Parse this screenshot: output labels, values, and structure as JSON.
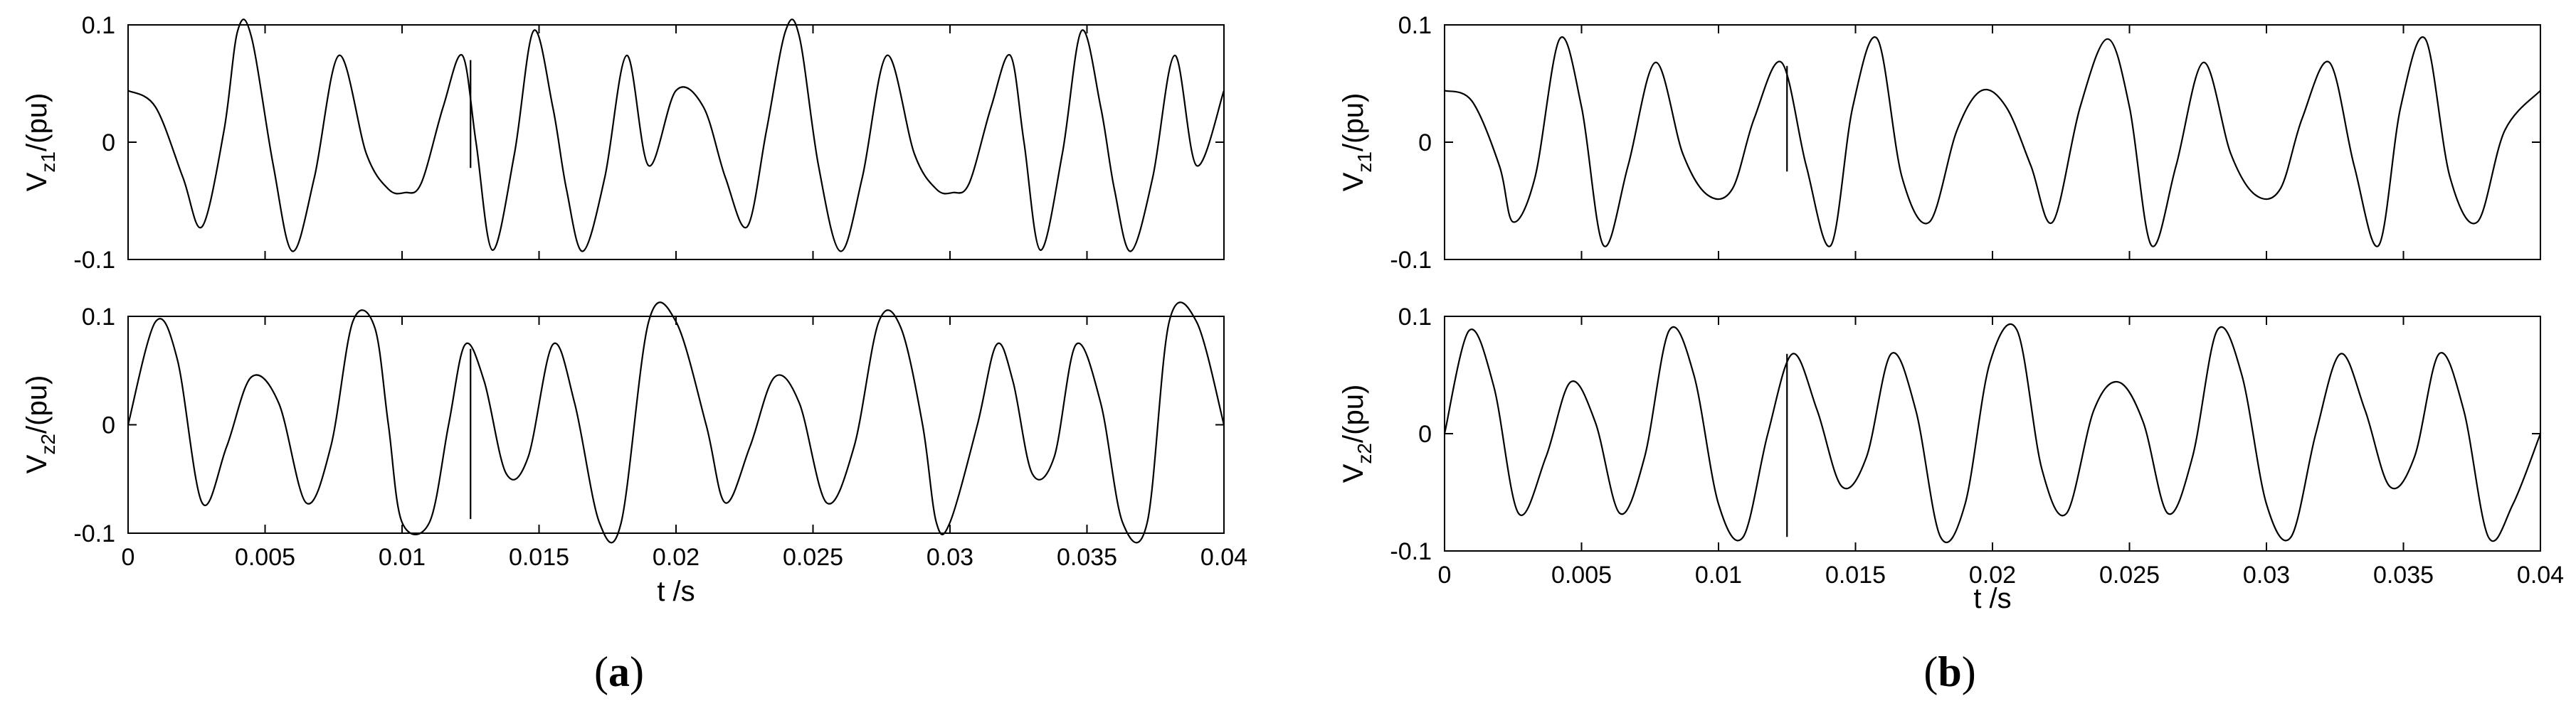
{
  "figure": {
    "panels": [
      {
        "label_open": "(",
        "label_letter": "a",
        "label_close": ")"
      },
      {
        "label_open": "(",
        "label_letter": "b",
        "label_close": ")"
      }
    ]
  },
  "chart_data": [
    {
      "type": "line",
      "panel": "a",
      "xlabel": "",
      "ylabel": {
        "main": "V",
        "sub": "z1",
        "unit": "/(pu)"
      },
      "xlim": [
        0,
        0.04
      ],
      "ylim": [
        -0.1,
        0.1
      ],
      "yticks": [
        "0.1",
        "0",
        "-0.1"
      ],
      "xticks": [],
      "series": [
        {
          "name": "V_z1",
          "x": [
            0.0,
            0.001,
            0.002,
            0.0027,
            0.0035,
            0.004,
            0.0045,
            0.0053,
            0.006,
            0.0068,
            0.0077,
            0.0087,
            0.0095,
            0.0101,
            0.0107,
            0.0115,
            0.0122,
            0.0127,
            0.0133,
            0.0141,
            0.0148,
            0.0155,
            0.016,
            0.0166,
            0.0174,
            0.0182,
            0.019,
            0.02,
            0.021,
            0.0218,
            0.0226,
            0.0233,
            0.024,
            0.0245,
            0.0252,
            0.026,
            0.0268,
            0.0277,
            0.0287,
            0.0295,
            0.0301,
            0.0307,
            0.0315,
            0.0322,
            0.0327,
            0.0333,
            0.0341,
            0.0348,
            0.0355,
            0.036,
            0.0366,
            0.0374,
            0.0382,
            0.039,
            0.04
          ],
          "y": [
            0.044,
            0.03,
            -0.03,
            -0.072,
            0.01,
            0.095,
            0.09,
            -0.02,
            -0.093,
            -0.03,
            0.074,
            -0.01,
            -0.04,
            -0.043,
            -0.035,
            0.03,
            0.074,
            0.0,
            -0.092,
            -0.01,
            0.095,
            0.03,
            -0.04,
            -0.093,
            -0.03,
            0.074,
            -0.02,
            0.044,
            0.03,
            -0.03,
            -0.072,
            0.01,
            0.095,
            0.09,
            -0.02,
            -0.093,
            -0.03,
            0.074,
            -0.01,
            -0.04,
            -0.043,
            -0.035,
            0.03,
            0.074,
            0.0,
            -0.092,
            -0.01,
            0.095,
            0.03,
            -0.04,
            -0.093,
            -0.03,
            0.074,
            -0.02,
            0.044
          ]
        }
      ],
      "marker": {
        "x": 0.0125,
        "y1": -0.022,
        "y2": 0.07
      }
    },
    {
      "type": "line",
      "panel": "a",
      "xlabel": "t /s",
      "ylabel": {
        "main": "V",
        "sub": "z2",
        "unit": "/(pu)"
      },
      "xlim": [
        0,
        0.04
      ],
      "ylim": [
        -0.1,
        0.1
      ],
      "yticks": [
        "0.1",
        "0",
        "-0.1"
      ],
      "xticks": [
        "0",
        "0.005",
        "0.01",
        "0.015",
        "0.02",
        "0.025",
        "0.03",
        "0.035",
        "0.04"
      ],
      "series": [
        {
          "name": "V_z2",
          "x": [
            0.0,
            0.001,
            0.0018,
            0.0027,
            0.0036,
            0.0045,
            0.0055,
            0.0065,
            0.0074,
            0.0082,
            0.009,
            0.0095,
            0.01,
            0.011,
            0.0117,
            0.0123,
            0.013,
            0.0138,
            0.0146,
            0.0155,
            0.0163,
            0.0172,
            0.018,
            0.019,
            0.02,
            0.0211,
            0.0218,
            0.0227,
            0.0236,
            0.0245,
            0.0255,
            0.0265,
            0.0274,
            0.0282,
            0.029,
            0.0295,
            0.03,
            0.031,
            0.0317,
            0.0323,
            0.033,
            0.0338,
            0.0346,
            0.0355,
            0.0363,
            0.0372,
            0.038,
            0.039,
            0.04
          ],
          "y": [
            0.0,
            0.095,
            0.06,
            -0.072,
            -0.02,
            0.044,
            0.02,
            -0.072,
            -0.02,
            0.095,
            0.09,
            0.0,
            -0.09,
            -0.09,
            0.0,
            0.074,
            0.04,
            -0.045,
            -0.03,
            0.074,
            0.02,
            -0.09,
            -0.09,
            0.095,
            0.095,
            0.0,
            -0.072,
            -0.02,
            0.044,
            0.02,
            -0.072,
            -0.02,
            0.095,
            0.09,
            0.0,
            -0.09,
            -0.09,
            0.0,
            0.074,
            0.04,
            -0.045,
            -0.03,
            0.074,
            0.02,
            -0.09,
            -0.09,
            0.095,
            0.095,
            0.0
          ]
        }
      ],
      "marker": {
        "x": 0.0125,
        "y1": -0.087,
        "y2": 0.07
      }
    },
    {
      "type": "line",
      "panel": "b",
      "xlabel": "",
      "ylabel": {
        "main": "V",
        "sub": "z1",
        "unit": "/(pu)"
      },
      "xlim": [
        0,
        0.04
      ],
      "ylim": [
        -0.1,
        0.1
      ],
      "yticks": [
        "0.1",
        "0",
        "-0.1"
      ],
      "xticks": [],
      "series": [
        {
          "name": "V_z1",
          "x": [
            0.0,
            0.001,
            0.002,
            0.0025,
            0.0033,
            0.0042,
            0.005,
            0.0058,
            0.0067,
            0.0077,
            0.0087,
            0.0096,
            0.0105,
            0.0113,
            0.0123,
            0.0132,
            0.0141,
            0.0149,
            0.0158,
            0.0167,
            0.0177,
            0.0187,
            0.0196,
            0.0205,
            0.0214,
            0.0222,
            0.0232,
            0.0242,
            0.025,
            0.0258,
            0.0267,
            0.0277,
            0.0287,
            0.0296,
            0.0305,
            0.0313,
            0.0323,
            0.0332,
            0.0341,
            0.0349,
            0.0358,
            0.0367,
            0.0377,
            0.0387,
            0.04
          ],
          "y": [
            0.044,
            0.035,
            -0.02,
            -0.068,
            -0.03,
            0.088,
            0.03,
            -0.088,
            -0.02,
            0.068,
            -0.01,
            -0.045,
            -0.04,
            0.02,
            0.068,
            -0.02,
            -0.088,
            0.03,
            0.088,
            -0.03,
            -0.068,
            0.01,
            0.044,
            0.03,
            -0.02,
            -0.068,
            0.03,
            0.088,
            0.03,
            -0.088,
            -0.02,
            0.068,
            -0.01,
            -0.045,
            -0.04,
            0.02,
            0.068,
            -0.02,
            -0.088,
            0.03,
            0.088,
            -0.03,
            -0.068,
            0.01,
            0.044
          ]
        }
      ],
      "marker": {
        "x": 0.0125,
        "y1": -0.025,
        "y2": 0.065
      }
    },
    {
      "type": "line",
      "panel": "b",
      "xlabel": "t /s",
      "ylabel": {
        "main": "V",
        "sub": "z2",
        "unit": "/(pu)"
      },
      "xlim": [
        0,
        0.04
      ],
      "ylim": [
        -0.1,
        0.1
      ],
      "yticks": [
        "0.1",
        "0",
        "-0.1"
      ],
      "xticks": [
        "0",
        "0.005",
        "0.01",
        "0.015",
        "0.02",
        "0.025",
        "0.03",
        "0.035",
        "0.04"
      ],
      "series": [
        {
          "name": "V_z2",
          "x": [
            0.0,
            0.0009,
            0.0018,
            0.0027,
            0.0037,
            0.0046,
            0.0055,
            0.0064,
            0.0073,
            0.0082,
            0.0091,
            0.01,
            0.0109,
            0.0118,
            0.0127,
            0.0136,
            0.0145,
            0.0154,
            0.0163,
            0.0172,
            0.0181,
            0.019,
            0.0199,
            0.0209,
            0.0218,
            0.0227,
            0.0237,
            0.0246,
            0.0255,
            0.0264,
            0.0273,
            0.0282,
            0.0291,
            0.03,
            0.0309,
            0.0318,
            0.0327,
            0.0336,
            0.0345,
            0.0354,
            0.0363,
            0.0372,
            0.0381,
            0.039,
            0.04
          ],
          "y": [
            0.0,
            0.088,
            0.04,
            -0.068,
            -0.02,
            0.044,
            0.01,
            -0.068,
            -0.02,
            0.088,
            0.05,
            -0.06,
            -0.088,
            0.0,
            0.068,
            0.02,
            -0.045,
            -0.02,
            0.068,
            0.02,
            -0.088,
            -0.06,
            0.06,
            0.088,
            -0.03,
            -0.068,
            0.02,
            0.044,
            0.01,
            -0.068,
            -0.02,
            0.088,
            0.05,
            -0.06,
            -0.088,
            0.0,
            0.068,
            0.02,
            -0.045,
            -0.02,
            0.068,
            0.02,
            -0.088,
            -0.06,
            0.0
          ]
        }
      ],
      "marker": {
        "x": 0.0125,
        "y1": -0.088,
        "y2": 0.068
      }
    }
  ]
}
